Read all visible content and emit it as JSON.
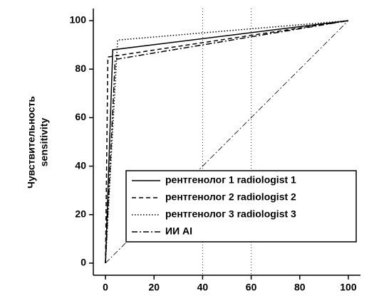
{
  "chart_data": {
    "type": "line",
    "y_label": [
      "Чувствительность",
      "sensitivity"
    ],
    "series": [
      {
        "name": "рентгенолог 1 radiologist 1",
        "color": "#000000",
        "dash": "none",
        "x": [
          0,
          3,
          100
        ],
        "values": [
          0,
          88,
          100
        ]
      },
      {
        "name": "рентгенолог 2 radiologist 2",
        "color": "#000000",
        "dash": "6,4",
        "x": [
          0,
          1,
          100
        ],
        "values": [
          0,
          85,
          100
        ]
      },
      {
        "name": "рентгенолог 3 radiologist 3",
        "color": "#000000",
        "dash": "1.5,2.5",
        "x": [
          0,
          5,
          100
        ],
        "values": [
          0,
          92,
          100
        ]
      },
      {
        "name": "ИИ AI",
        "color": "#000000",
        "dash": "8,3,2,3",
        "x": [
          0,
          4,
          100
        ],
        "values": [
          0,
          84,
          100
        ]
      }
    ],
    "xlim": [
      -5,
      105
    ],
    "ylim": [
      -5,
      105
    ],
    "xticks": [
      0,
      20,
      40,
      60,
      80,
      100
    ],
    "yticks": [
      0,
      20,
      40,
      60,
      80,
      100
    ],
    "grid_x": [
      40,
      60
    ],
    "diagonal": true,
    "legend": "lower right"
  }
}
